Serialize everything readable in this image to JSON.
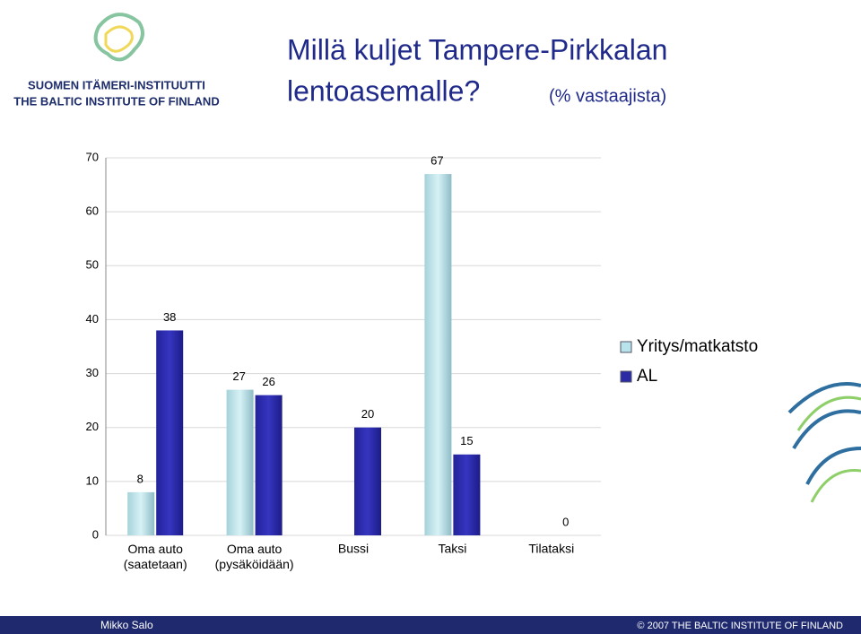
{
  "header": {
    "org_fi": "SUOMEN ITÄMERI-INSTITUUTTI",
    "org_en": "THE BALTIC INSTITUTE OF FINLAND"
  },
  "chart_data": {
    "type": "bar",
    "title": [
      "Millä kuljet Tampere-Pirkkalan",
      "lentoasemalle?"
    ],
    "subtitle": "(% vastaajista)",
    "categories": [
      "Oma auto\n(saatetaan)",
      "Oma auto\n(pysäköidään)",
      "Bussi",
      "Taksi",
      "Tilataksi"
    ],
    "series": [
      {
        "name": "Yritys/matkatsto",
        "color": "#b9e3ec",
        "values": [
          8,
          27,
          null,
          67,
          null
        ]
      },
      {
        "name": "AL",
        "color": "#2b2ba6",
        "values": [
          38,
          26,
          20,
          15,
          0
        ]
      }
    ],
    "ylim": [
      0,
      70
    ],
    "yticks": [
      0,
      10,
      20,
      30,
      40,
      50,
      60,
      70
    ],
    "grid": true,
    "legend": "right"
  },
  "footer": {
    "author": "Mikko Salo",
    "copyright": "© 2007 THE BALTIC INSTITUTE OF FINLAND"
  }
}
